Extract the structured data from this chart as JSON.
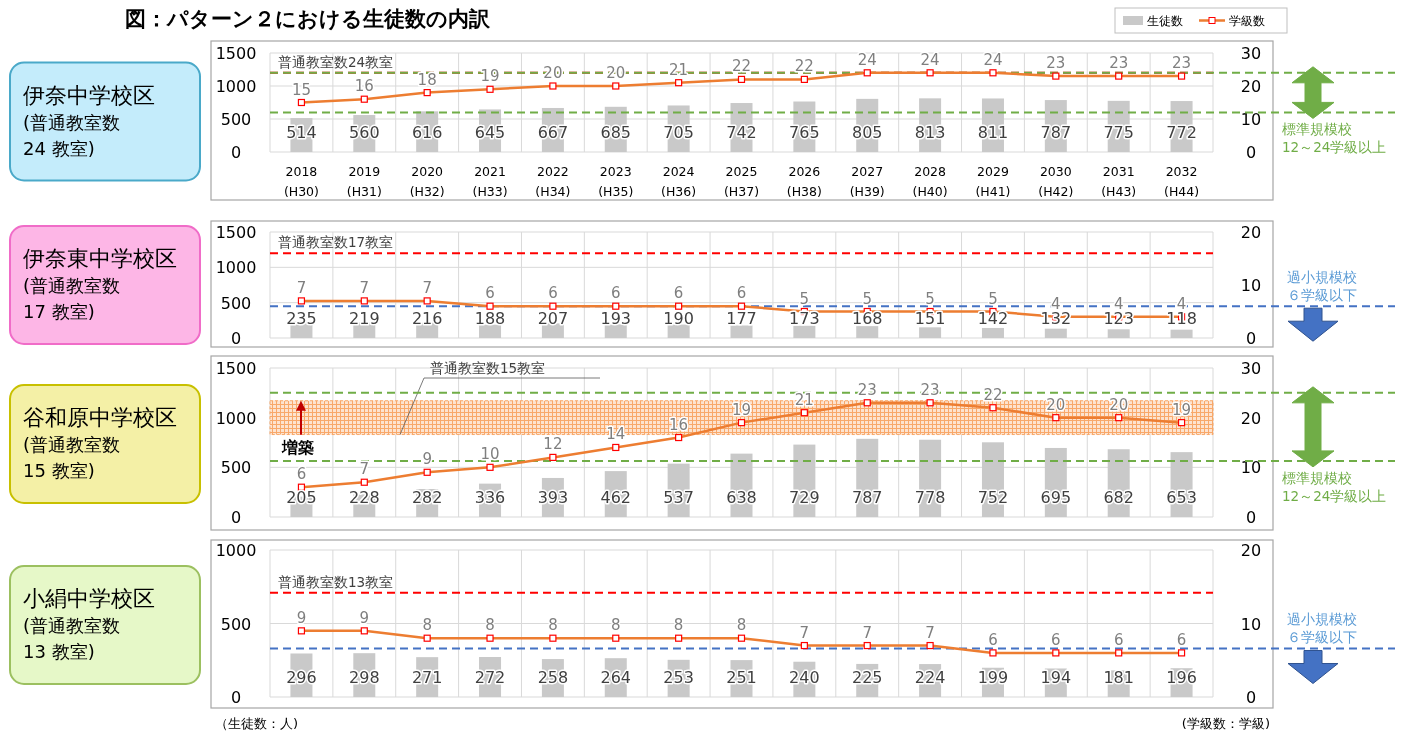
{
  "chart_data": [
    {
      "type": "bar",
      "title": "図：パターン２における生徒数の内訳",
      "subtitle": "伊奈中学校区\n(普通教室数\n24 教室)",
      "categories": [
        "2018\n(H30)",
        "2019\n(H31)",
        "2020\n(H32)",
        "2021\n(H33)",
        "2022\n(H34)",
        "2023\n(H35)",
        "2024\n(H36)",
        "2025\n(H37)",
        "2026\n(H38)",
        "2027\n(H39)",
        "2028\n(H40)",
        "2029\n(H41)",
        "2030\n(H42)",
        "2031\n(H43)",
        "2032\n(H44)"
      ],
      "series": [
        {
          "name": "生徒数",
          "color": "#c9c9c9",
          "values": [
            514,
            560,
            616,
            645,
            667,
            685,
            705,
            742,
            765,
            805,
            813,
            811,
            787,
            775,
            772
          ]
        },
        {
          "name": "学級数",
          "type": "line",
          "axis": "y2",
          "color": "#ed7d31",
          "marker": "square",
          "values": [
            15,
            16,
            18,
            19,
            20,
            20,
            21,
            22,
            22,
            24,
            24,
            24,
            23,
            23,
            23
          ]
        }
      ],
      "ylim": [
        0,
        1500
      ],
      "yticks": [
        0,
        500,
        1000,
        1500
      ],
      "y2lim": [
        0,
        30
      ],
      "y2ticks": [
        0,
        10,
        20,
        30
      ],
      "grid": true,
      "legend": "top right",
      "data_labels": true,
      "ref_lines": [
        {
          "axis": "y2",
          "value": 24,
          "label": "普通教室数24教室",
          "color": "#ff0000",
          "line_style": "dashed"
        },
        {
          "axis": "y2",
          "value": 24,
          "color": "#70ad47",
          "line_style": "dashed"
        },
        {
          "axis": "y2",
          "value": 12,
          "color": "#70ad47",
          "line_style": "dashed"
        }
      ],
      "annotations": [
        "標準規模校12～24学級以上"
      ]
    },
    {
      "type": "bar",
      "subtitle": "伊奈東中学校区\n(普通教室数\n17 教室)",
      "categories": [
        null,
        null,
        null,
        null,
        null,
        null,
        null,
        null,
        null,
        null,
        null,
        null,
        null,
        null,
        null
      ],
      "series": [
        {
          "color": "#c9c9c9",
          "values": [
            235,
            219,
            216,
            188,
            207,
            193,
            190,
            177,
            173,
            168,
            151,
            142,
            132,
            123,
            118
          ]
        },
        {
          "type": "line",
          "axis": "y2",
          "color": "#ed7d31",
          "marker": "square",
          "values": [
            7,
            7,
            7,
            6,
            6,
            6,
            6,
            6,
            5,
            5,
            5,
            5,
            4,
            4,
            4
          ]
        }
      ],
      "ylim": [
        0,
        1500
      ],
      "yticks": [
        0,
        500,
        1000,
        1500
      ],
      "y2lim": [
        0,
        20
      ],
      "y2ticks": [
        0,
        10,
        20
      ],
      "grid": true,
      "data_labels": true,
      "tick_labels": "y",
      "ref_lines": [
        {
          "axis": "y2",
          "value": 16,
          "label": "普通教室数17教室",
          "color": "#ff0000",
          "line_style": "dashed"
        },
        {
          "axis": "y2",
          "value": 6,
          "color": "#4472c4",
          "line_style": "dashed"
        }
      ],
      "annotations": [
        "過小規模校６学級以下"
      ]
    },
    {
      "type": "bar",
      "subtitle": "谷和原中学校区\n(普通教室数\n15 教室)",
      "categories": [
        null,
        null,
        null,
        null,
        null,
        null,
        null,
        null,
        null,
        null,
        null,
        null,
        null,
        null,
        null
      ],
      "series": [
        {
          "color": "#c9c9c9",
          "values": [
            205,
            228,
            282,
            336,
            393,
            462,
            537,
            638,
            729,
            787,
            778,
            752,
            695,
            682,
            653
          ]
        },
        {
          "type": "line",
          "axis": "y2",
          "color": "#ed7d31",
          "marker": "square",
          "values": [
            6,
            7,
            9,
            10,
            12,
            14,
            16,
            19,
            21,
            23,
            23,
            22,
            20,
            20,
            19
          ]
        }
      ],
      "ylim": [
        0,
        1500
      ],
      "yticks": [
        0,
        500,
        1000,
        1500
      ],
      "y2lim": [
        0,
        30
      ],
      "y2ticks": [
        0,
        10,
        20,
        30
      ],
      "grid": true,
      "data_labels": true,
      "tick_labels": "y",
      "bands": [
        {
          "axis": "y2",
          "from": 16.6,
          "to": 23.4,
          "label": "普通教室数15教室",
          "color": "#f8a86a"
        }
      ],
      "ref_lines": [
        {
          "axis": "y2",
          "value": 25,
          "color": "#70ad47",
          "line_style": "dashed"
        },
        {
          "axis": "y2",
          "value": 11.3,
          "color": "#70ad47",
          "line_style": "dashed"
        }
      ],
      "annotations": [
        {
          "text": "増築",
          "y": 1170
        },
        "標準規模校12～24学級以上"
      ]
    },
    {
      "type": "bar",
      "subtitle": "小絹中学校区\n(普通教室数\n13 教室)",
      "ylabel": "（生徒数：人)",
      "y2label": "(学級数：学級)",
      "categories": [
        null,
        null,
        null,
        null,
        null,
        null,
        null,
        null,
        null,
        null,
        null,
        null,
        null,
        null,
        null
      ],
      "series": [
        {
          "color": "#c9c9c9",
          "values": [
            296,
            298,
            271,
            272,
            258,
            264,
            253,
            251,
            240,
            225,
            224,
            199,
            194,
            181,
            196
          ]
        },
        {
          "type": "line",
          "axis": "y2",
          "color": "#ed7d31",
          "marker": "square",
          "values": [
            9,
            9,
            8,
            8,
            8,
            8,
            8,
            8,
            7,
            7,
            7,
            6,
            6,
            6,
            6
          ]
        }
      ],
      "ylim": [
        0,
        1000
      ],
      "yticks": [
        0,
        500,
        1000
      ],
      "y2lim": [
        0,
        20
      ],
      "y2ticks": [
        0,
        10,
        20
      ],
      "grid": true,
      "data_labels": true,
      "tick_labels": "y",
      "ref_lines": [
        {
          "axis": "y2",
          "value": 14.2,
          "label": "普通教室数13教室",
          "color": "#ff0000",
          "line_style": "dashed"
        },
        {
          "axis": "y2",
          "value": 6.6,
          "color": "#4472c4",
          "line_style": "dashed"
        }
      ],
      "annotations": [
        "過小規模校６学級以下"
      ]
    }
  ]
}
